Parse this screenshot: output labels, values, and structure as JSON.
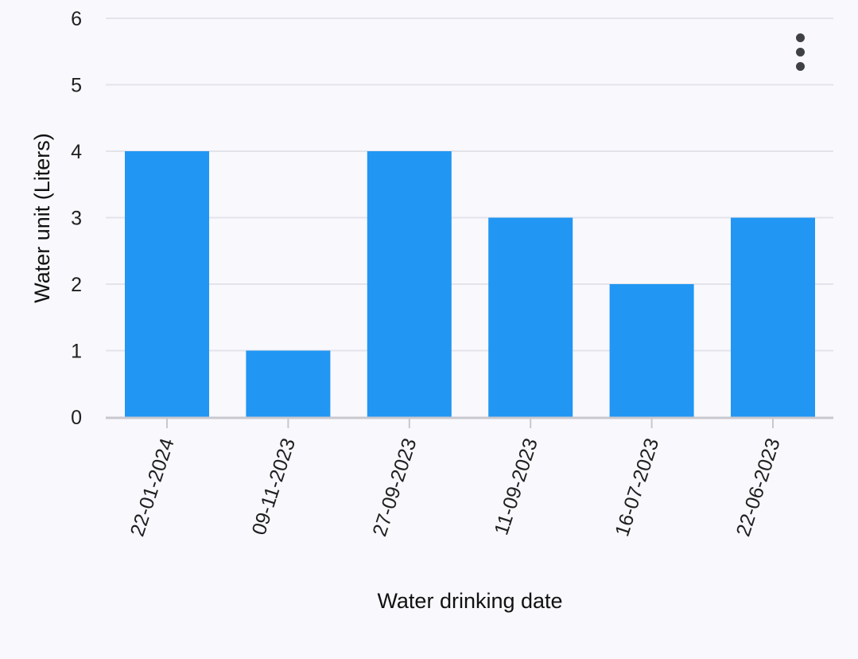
{
  "chart_data": {
    "type": "bar",
    "categories": [
      "22-01-2024",
      "09-11-2023",
      "27-09-2023",
      "11-09-2023",
      "16-07-2023",
      "22-06-2023"
    ],
    "values": [
      4,
      1,
      4,
      3,
      2,
      3
    ],
    "xlabel": "Water drinking date",
    "ylabel": "Water unit (Liters)",
    "ylim": [
      0,
      6
    ],
    "yticks": [
      "0",
      "1",
      "2",
      "3",
      "4",
      "5",
      "6"
    ],
    "grid": true,
    "legend": "none",
    "colors": {
      "bar": "#2196f3",
      "grid": "#e3e3ea",
      "axis": "#c8c8cf",
      "text": "#1f1f1f"
    }
  },
  "menu": {
    "icon": "more-vert-icon"
  }
}
